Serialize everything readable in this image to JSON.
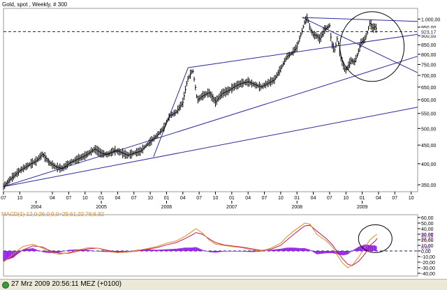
{
  "title": "Gold, spot , Weekly, # 300",
  "macd_title": "MACD(1) 12,0;26,0;9,0=29,61;22,78;6,82",
  "status": "27 Mrz 2009 20:56:11  MEZ (+0100)",
  "colors": {
    "price": "#000000",
    "trendline": "#2b2b9e",
    "hline": "#1a1a6e",
    "macd_line": "#e08a1e",
    "signal_line": "#c2185b",
    "histogram": "#8b14e6",
    "circle": "#000000"
  },
  "chart_data": [
    {
      "type": "line",
      "name": "price",
      "yscale": "log",
      "ylim": [
        335,
        1070
      ],
      "xlim": [
        2003.5,
        2009.85
      ],
      "y_ticks": [
        "1.000,00",
        "950,00",
        "900,00",
        "850,00",
        "800,00",
        "750,00",
        "700,00",
        "650,00",
        "600,00",
        "550,00",
        "500,00",
        "450,00",
        "400,00",
        "350,00"
      ],
      "y_tick_values": [
        1000,
        950,
        900,
        850,
        800,
        750,
        700,
        650,
        600,
        550,
        500,
        450,
        400,
        350
      ],
      "last_value_label": "923,17",
      "last_value": 923.17,
      "x_month_ticks": [
        "07",
        "10",
        "04",
        "07",
        "10",
        "01",
        "04",
        "07",
        "10",
        "01",
        "04",
        "07",
        "10",
        "01",
        "04",
        "07",
        "10",
        "01",
        "04",
        "07",
        "10",
        "01",
        "04",
        "07",
        "10"
      ],
      "x_month_values": [
        2003.5,
        2003.75,
        2004.25,
        2004.5,
        2004.75,
        2005.0,
        2005.25,
        2005.5,
        2005.75,
        2006.0,
        2006.25,
        2006.5,
        2006.75,
        2007.0,
        2007.25,
        2007.5,
        2007.75,
        2008.0,
        2008.25,
        2008.5,
        2008.75,
        2009.0,
        2009.25,
        2009.5,
        2009.75
      ],
      "x_year_ticks": [
        "2004",
        "2005",
        "2006",
        "2007",
        "2008",
        "2009"
      ],
      "x_year_values": [
        2004.0,
        2005.0,
        2006.0,
        2007.0,
        2008.0,
        2009.0
      ],
      "x": [
        2003.5,
        2003.6,
        2003.75,
        2003.9,
        2004.0,
        2004.1,
        2004.2,
        2004.3,
        2004.4,
        2004.5,
        2004.6,
        2004.75,
        2004.9,
        2005.0,
        2005.1,
        2005.2,
        2005.3,
        2005.4,
        2005.5,
        2005.6,
        2005.75,
        2005.85,
        2005.95,
        2006.05,
        2006.15,
        2006.25,
        2006.32,
        2006.4,
        2006.47,
        2006.55,
        2006.65,
        2006.75,
        2006.85,
        2006.95,
        2007.05,
        2007.15,
        2007.25,
        2007.35,
        2007.45,
        2007.55,
        2007.65,
        2007.75,
        2007.85,
        2007.92,
        2008.0,
        2008.08,
        2008.12,
        2008.16,
        2008.2,
        2008.25,
        2008.3,
        2008.35,
        2008.42,
        2008.5,
        2008.53,
        2008.58,
        2008.62,
        2008.66,
        2008.7,
        2008.74,
        2008.78,
        2008.83,
        2008.88,
        2008.93,
        2008.98,
        2009.04,
        2009.08,
        2009.12,
        2009.16,
        2009.2,
        2009.23
      ],
      "values": [
        346,
        362,
        383,
        398,
        407,
        425,
        403,
        392,
        388,
        401,
        409,
        421,
        439,
        427,
        424,
        435,
        430,
        422,
        428,
        433,
        460,
        478,
        500,
        542,
        555,
        590,
        680,
        725,
        598,
        615,
        628,
        592,
        624,
        636,
        654,
        666,
        672,
        660,
        650,
        666,
        680,
        730,
        790,
        805,
        840,
        930,
        985,
        1010,
        940,
        905,
        900,
        880,
        935,
        960,
        855,
        820,
        890,
        800,
        755,
        720,
        740,
        770,
        760,
        800,
        860,
        880,
        920,
        980,
        940,
        955,
        925
      ]
    },
    {
      "type": "line",
      "name": "MACD(1) 12,0;26,0;9,0",
      "ylim": [
        -45,
        65
      ],
      "y_ticks": [
        "60,00",
        "50,00",
        "40,00",
        "30,00",
        "20,00",
        "10,00",
        "0,00",
        "-10,00",
        "-20,00",
        "-30,00",
        "-40,00"
      ],
      "y_tick_values": [
        60,
        50,
        40,
        30,
        20,
        10,
        0,
        -10,
        -20,
        -30,
        -40
      ],
      "x": [
        2003.5,
        2003.65,
        2003.8,
        2003.95,
        2004.1,
        2004.2,
        2004.35,
        2004.5,
        2004.65,
        2004.8,
        2004.95,
        2005.1,
        2005.25,
        2005.4,
        2005.55,
        2005.7,
        2005.85,
        2006.0,
        2006.15,
        2006.28,
        2006.38,
        2006.45,
        2006.55,
        2006.65,
        2006.75,
        2006.88,
        2007.0,
        2007.15,
        2007.3,
        2007.45,
        2007.6,
        2007.75,
        2007.85,
        2007.95,
        2008.05,
        2008.12,
        2008.2,
        2008.3,
        2008.45,
        2008.55,
        2008.62,
        2008.7,
        2008.78,
        2008.85,
        2008.95,
        2009.05,
        2009.12,
        2009.2,
        2009.23
      ],
      "macd": [
        -20,
        -5,
        8,
        12,
        5,
        -2,
        -6,
        -3,
        2,
        6,
        5,
        -1,
        -3,
        -2,
        1,
        4,
        8,
        14,
        18,
        26,
        34,
        40,
        32,
        20,
        12,
        10,
        8,
        6,
        2,
        0,
        5,
        14,
        26,
        36,
        44,
        50,
        48,
        30,
        18,
        6,
        -8,
        -22,
        -30,
        -25,
        -10,
        8,
        20,
        28,
        30
      ],
      "signal": [
        -18,
        -10,
        2,
        9,
        7,
        1,
        -4,
        -4,
        0,
        4,
        5,
        1,
        -2,
        -2,
        0,
        3,
        6,
        11,
        15,
        22,
        28,
        33,
        30,
        22,
        15,
        11,
        9,
        7,
        4,
        1,
        3,
        10,
        20,
        30,
        39,
        45,
        46,
        36,
        22,
        10,
        -2,
        -14,
        -24,
        -26,
        -18,
        -4,
        10,
        18,
        23
      ],
      "histogram": [
        -18,
        -12,
        3,
        5,
        -2,
        -4,
        -3,
        2,
        3,
        2,
        -1,
        -2,
        -3,
        -1,
        2,
        3,
        2,
        3,
        4,
        6,
        6,
        7,
        2,
        -2,
        -3,
        -1,
        -1,
        -1,
        -2,
        -1,
        2,
        4,
        6,
        6,
        5,
        5,
        2,
        -6,
        -4,
        -4,
        -6,
        -8,
        -6,
        1,
        8,
        12,
        10,
        10,
        7
      ],
      "last_values_labels": [
        "29,61",
        "22,78",
        "6,82"
      ],
      "last_values": [
        29.61,
        22.78,
        6.82
      ]
    }
  ]
}
